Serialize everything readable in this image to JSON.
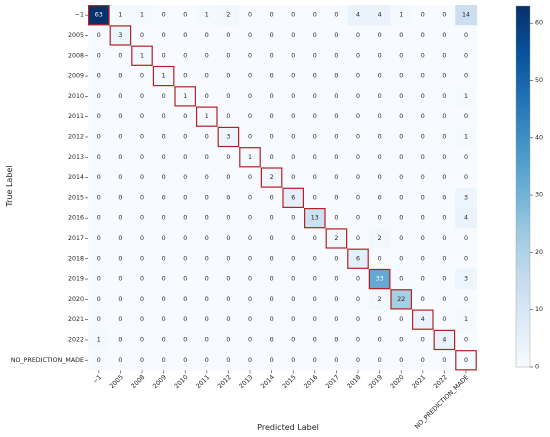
{
  "chart_data": {
    "type": "heatmap",
    "xlabel": "Predicted Label",
    "ylabel": "True Label",
    "labels": [
      "−1",
      "2005",
      "2008",
      "2009",
      "2010",
      "2011",
      "2012",
      "2013",
      "2014",
      "2015",
      "2016",
      "2017",
      "2018",
      "2019",
      "2020",
      "2021",
      "2022",
      "NO_PREDICTION_MADE"
    ],
    "matrix": [
      [
        63,
        1,
        1,
        0,
        0,
        1,
        2,
        0,
        0,
        0,
        0,
        0,
        4,
        4,
        1,
        0,
        0,
        14
      ],
      [
        0,
        3,
        0,
        0,
        0,
        0,
        0,
        0,
        0,
        0,
        0,
        0,
        0,
        0,
        0,
        0,
        0,
        0
      ],
      [
        0,
        0,
        1,
        0,
        0,
        0,
        0,
        0,
        0,
        0,
        0,
        0,
        0,
        0,
        0,
        0,
        0,
        0
      ],
      [
        0,
        0,
        0,
        1,
        0,
        0,
        0,
        0,
        0,
        0,
        0,
        0,
        0,
        0,
        0,
        0,
        0,
        0
      ],
      [
        0,
        0,
        0,
        0,
        1,
        0,
        0,
        0,
        0,
        0,
        0,
        0,
        0,
        0,
        0,
        0,
        0,
        1
      ],
      [
        0,
        0,
        0,
        0,
        0,
        1,
        0,
        0,
        0,
        0,
        0,
        0,
        0,
        0,
        0,
        0,
        0,
        0
      ],
      [
        0,
        0,
        0,
        0,
        0,
        0,
        3,
        0,
        0,
        0,
        0,
        0,
        0,
        0,
        0,
        0,
        0,
        1
      ],
      [
        0,
        0,
        0,
        0,
        0,
        0,
        0,
        1,
        0,
        0,
        0,
        0,
        0,
        0,
        0,
        0,
        0,
        0
      ],
      [
        0,
        0,
        0,
        0,
        0,
        0,
        0,
        0,
        2,
        0,
        0,
        0,
        0,
        0,
        0,
        0,
        0,
        0
      ],
      [
        0,
        0,
        0,
        0,
        0,
        0,
        0,
        0,
        0,
        6,
        0,
        0,
        0,
        0,
        0,
        0,
        0,
        3
      ],
      [
        0,
        0,
        0,
        0,
        0,
        0,
        0,
        0,
        0,
        0,
        13,
        0,
        0,
        0,
        0,
        0,
        0,
        4
      ],
      [
        0,
        0,
        0,
        0,
        0,
        0,
        0,
        0,
        0,
        0,
        0,
        2,
        0,
        2,
        0,
        0,
        0,
        0
      ],
      [
        0,
        0,
        0,
        0,
        0,
        0,
        0,
        0,
        0,
        0,
        0,
        0,
        6,
        0,
        0,
        0,
        0,
        0
      ],
      [
        0,
        0,
        0,
        0,
        0,
        0,
        0,
        0,
        0,
        0,
        0,
        0,
        0,
        33,
        0,
        0,
        0,
        3
      ],
      [
        0,
        0,
        0,
        0,
        0,
        0,
        0,
        0,
        0,
        0,
        0,
        0,
        0,
        2,
        22,
        0,
        0,
        0
      ],
      [
        0,
        0,
        0,
        0,
        0,
        0,
        0,
        0,
        0,
        0,
        0,
        0,
        0,
        0,
        0,
        4,
        0,
        1
      ],
      [
        1,
        0,
        0,
        0,
        0,
        0,
        0,
        0,
        0,
        0,
        0,
        0,
        0,
        0,
        0,
        0,
        4,
        0
      ],
      [
        0,
        0,
        0,
        0,
        0,
        0,
        0,
        0,
        0,
        0,
        0,
        0,
        0,
        0,
        0,
        0,
        0,
        0
      ]
    ],
    "colorbar": {
      "min": 0,
      "max": 63,
      "ticks": [
        0,
        10,
        20,
        30,
        40,
        50,
        60
      ]
    },
    "colormap": "Blues",
    "diagonal_highlight_color": "#b22222",
    "grid": false,
    "legend": "colorbar-right"
  }
}
